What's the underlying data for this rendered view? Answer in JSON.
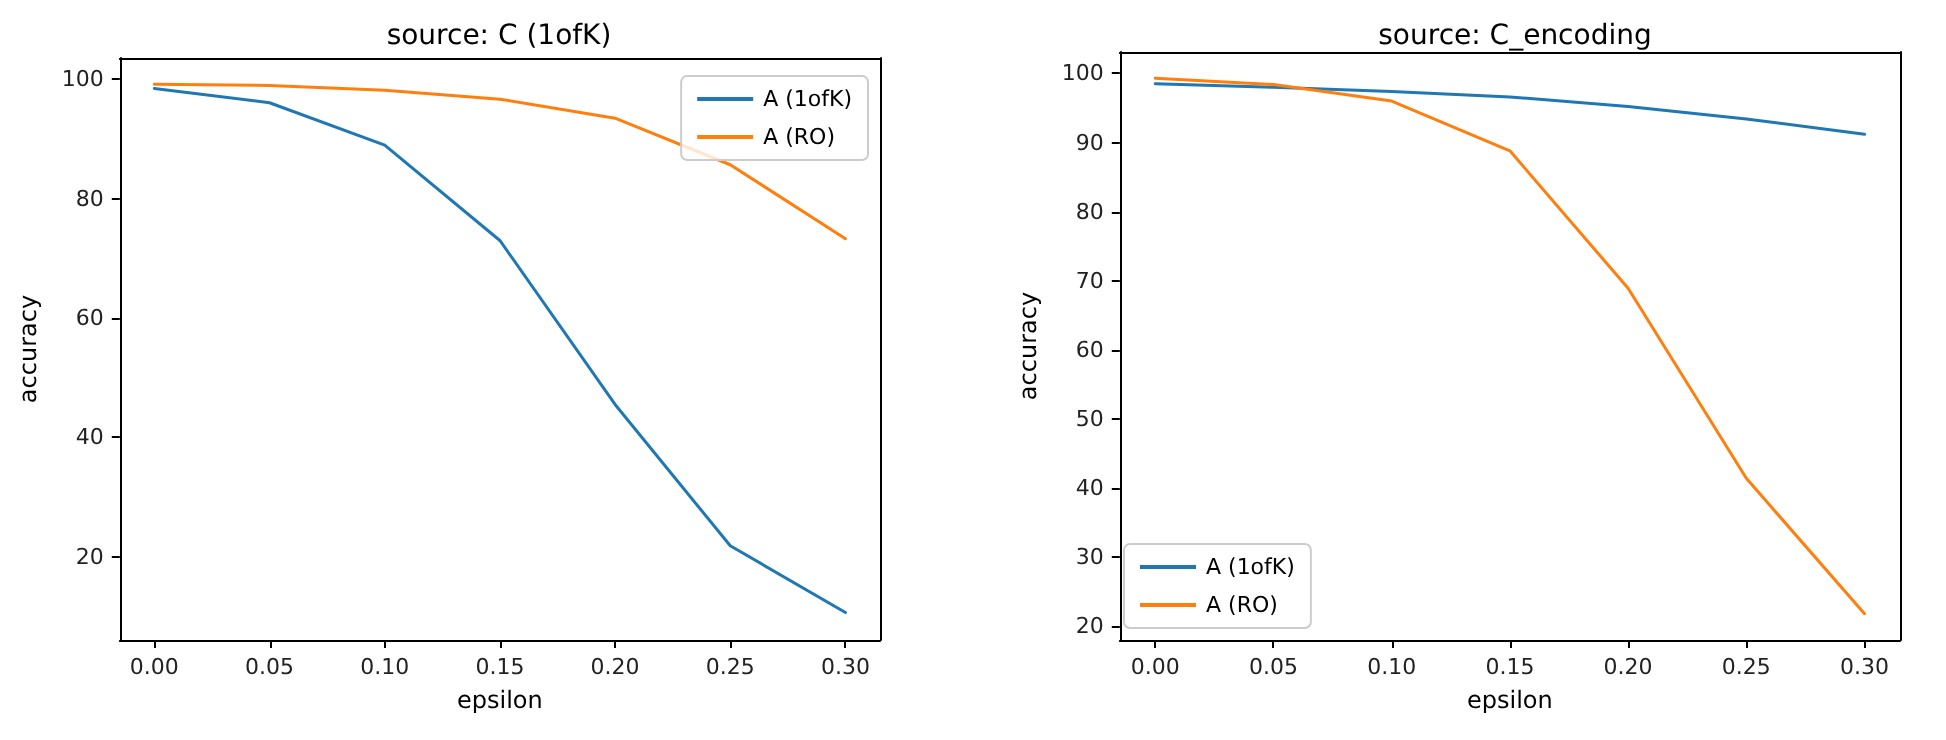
{
  "chart_data": [
    {
      "type": "line",
      "title": "source: C (1ofK)",
      "xlabel": "epsilon",
      "ylabel": "accuracy",
      "x": [
        0,
        0.05,
        0.1,
        0.15,
        0.2,
        0.25,
        0.3
      ],
      "series": [
        {
          "name": "A (1ofK)",
          "color": "#1f77b4",
          "values": [
            98.5,
            96.1,
            89,
            73,
            45.5,
            21.8,
            10.6
          ]
        },
        {
          "name": "A (RO)",
          "color": "#ff7f0e",
          "values": [
            99.2,
            99.0,
            98.2,
            96.7,
            93.5,
            85.7,
            73.3
          ]
        }
      ],
      "xlim": [
        -0.015,
        0.315
      ],
      "ylim": [
        6,
        103.6
      ],
      "xticks": [
        {
          "value": 0,
          "label": "0.00"
        },
        {
          "value": 0.05,
          "label": "0.05"
        },
        {
          "value": 0.1,
          "label": "0.10"
        },
        {
          "value": 0.15,
          "label": "0.15"
        },
        {
          "value": 0.2,
          "label": "0.20"
        },
        {
          "value": 0.25,
          "label": "0.25"
        },
        {
          "value": 0.3,
          "label": "0.30"
        }
      ],
      "yticks": [
        20,
        40,
        60,
        80,
        100
      ],
      "grid": false,
      "legend": "top right",
      "marker": "none",
      "line_style": "solid"
    },
    {
      "type": "line",
      "title": "source: C_encoding",
      "xlabel": "epsilon",
      "ylabel": "accuracy",
      "x": [
        0,
        0.05,
        0.1,
        0.15,
        0.2,
        0.25,
        0.3
      ],
      "series": [
        {
          "name": "A (1ofK)",
          "color": "#1f77b4",
          "values": [
            98.5,
            98.0,
            97.4,
            96.6,
            95.2,
            93.4,
            91.2
          ]
        },
        {
          "name": "A (RO)",
          "color": "#ff7f0e",
          "values": [
            99.3,
            98.4,
            96.0,
            88.8,
            68.9,
            41.4,
            21.8
          ]
        }
      ],
      "xlim": [
        -0.015,
        0.315
      ],
      "ylim": [
        18,
        103.1
      ],
      "xticks": [
        {
          "value": 0,
          "label": "0.00"
        },
        {
          "value": 0.05,
          "label": "0.05"
        },
        {
          "value": 0.1,
          "label": "0.10"
        },
        {
          "value": 0.15,
          "label": "0.15"
        },
        {
          "value": 0.2,
          "label": "0.20"
        },
        {
          "value": 0.25,
          "label": "0.25"
        },
        {
          "value": 0.3,
          "label": "0.30"
        }
      ],
      "yticks": [
        20,
        30,
        40,
        50,
        60,
        70,
        80,
        90,
        100
      ],
      "grid": false,
      "legend": "bottom left",
      "marker": "none",
      "line_style": "solid"
    }
  ]
}
